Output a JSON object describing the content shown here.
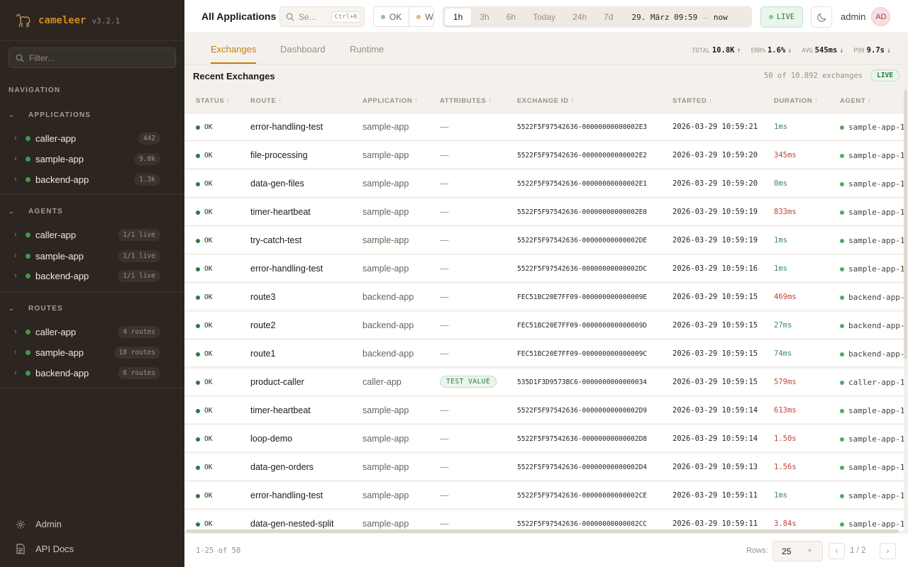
{
  "brand": {
    "name": "cameleer",
    "version": "v3.2.1"
  },
  "sidebar": {
    "filter_placeholder": "Filter...",
    "nav_label": "NAVIGATION",
    "sections": [
      {
        "title": "APPLICATIONS",
        "items": [
          {
            "label": "caller-app",
            "badge": "442"
          },
          {
            "label": "sample-app",
            "badge": "9.0k"
          },
          {
            "label": "backend-app",
            "badge": "1.3k"
          }
        ]
      },
      {
        "title": "AGENTS",
        "items": [
          {
            "label": "caller-app",
            "badge": "1/1 live"
          },
          {
            "label": "sample-app",
            "badge": "1/1 live"
          },
          {
            "label": "backend-app",
            "badge": "1/1 live"
          }
        ]
      },
      {
        "title": "ROUTES",
        "items": [
          {
            "label": "caller-app",
            "badge": "4 routes"
          },
          {
            "label": "sample-app",
            "badge": "18 routes"
          },
          {
            "label": "backend-app",
            "badge": "6 routes"
          }
        ]
      }
    ],
    "footer": [
      {
        "label": "Admin",
        "icon": "gear-icon"
      },
      {
        "label": "API Docs",
        "icon": "document-icon"
      }
    ]
  },
  "topbar": {
    "title": "All Applications",
    "search_placeholder": "Se...",
    "search_shortcut": "Ctrl+K",
    "status_filters": [
      "OK",
      "Wa"
    ],
    "time_presets": [
      "1h",
      "3h",
      "6h",
      "Today",
      "24h",
      "7d"
    ],
    "active_preset": "1h",
    "range_start": "29. März 09:59",
    "range_sep": "—",
    "range_end": "now",
    "live_label": "LIVE",
    "user": "admin",
    "avatar": "AD"
  },
  "tabs": [
    "Exchanges",
    "Dashboard",
    "Runtime"
  ],
  "active_tab": "Exchanges",
  "kpis": [
    {
      "label": "TOTAL",
      "value": "10.8K",
      "trend": "↑"
    },
    {
      "label": "ERR%",
      "value": "1.6%",
      "trend": "↓"
    },
    {
      "label": "AVG",
      "value": "545ms",
      "trend": "↓"
    },
    {
      "label": "P99",
      "value": "9.7s",
      "trend": "↓"
    }
  ],
  "section": {
    "title": "Recent Exchanges",
    "count": "50 of 10.892 exchanges",
    "live": "LIVE"
  },
  "table": {
    "columns": [
      "STATUS",
      "ROUTE",
      "APPLICATION",
      "ATTRIBUTES",
      "EXCHANGE ID",
      "STARTED",
      "DURATION",
      "AGENT"
    ],
    "rows": [
      {
        "status": "OK",
        "route": "error-handling-test",
        "app": "sample-app",
        "attr": "—",
        "id": "5522F5F97542636-00000000000002E3",
        "started": "2026-03-29 10:59:21",
        "duration": "1ms",
        "agent": "sample-app-1"
      },
      {
        "status": "OK",
        "route": "file-processing",
        "app": "sample-app",
        "attr": "—",
        "id": "5522F5F97542636-00000000000002E2",
        "started": "2026-03-29 10:59:20",
        "duration": "345ms",
        "agent": "sample-app-1"
      },
      {
        "status": "OK",
        "route": "data-gen-files",
        "app": "sample-app",
        "attr": "—",
        "id": "5522F5F97542636-00000000000002E1",
        "started": "2026-03-29 10:59:20",
        "duration": "0ms",
        "agent": "sample-app-1"
      },
      {
        "status": "OK",
        "route": "timer-heartbeat",
        "app": "sample-app",
        "attr": "—",
        "id": "5522F5F97542636-00000000000002E0",
        "started": "2026-03-29 10:59:19",
        "duration": "833ms",
        "agent": "sample-app-1"
      },
      {
        "status": "OK",
        "route": "try-catch-test",
        "app": "sample-app",
        "attr": "—",
        "id": "5522F5F97542636-00000000000002DE",
        "started": "2026-03-29 10:59:19",
        "duration": "1ms",
        "agent": "sample-app-1"
      },
      {
        "status": "OK",
        "route": "error-handling-test",
        "app": "sample-app",
        "attr": "—",
        "id": "5522F5F97542636-00000000000002DC",
        "started": "2026-03-29 10:59:16",
        "duration": "1ms",
        "agent": "sample-app-1"
      },
      {
        "status": "OK",
        "route": "route3",
        "app": "backend-app",
        "attr": "—",
        "id": "FEC51BC20E7FF09-000000000000009E",
        "started": "2026-03-29 10:59:15",
        "duration": "469ms",
        "agent": "backend-app-"
      },
      {
        "status": "OK",
        "route": "route2",
        "app": "backend-app",
        "attr": "—",
        "id": "FEC51BC20E7FF09-000000000000009D",
        "started": "2026-03-29 10:59:15",
        "duration": "27ms",
        "agent": "backend-app-"
      },
      {
        "status": "OK",
        "route": "route1",
        "app": "backend-app",
        "attr": "—",
        "id": "FEC51BC20E7FF09-000000000000009C",
        "started": "2026-03-29 10:59:15",
        "duration": "74ms",
        "agent": "backend-app-"
      },
      {
        "status": "OK",
        "route": "product-caller",
        "app": "caller-app",
        "attr": "TEST VALUE",
        "id": "535D1F3D9573BC6-0000000000000034",
        "started": "2026-03-29 10:59:15",
        "duration": "579ms",
        "agent": "caller-app-1"
      },
      {
        "status": "OK",
        "route": "timer-heartbeat",
        "app": "sample-app",
        "attr": "—",
        "id": "5522F5F97542636-00000000000002D9",
        "started": "2026-03-29 10:59:14",
        "duration": "613ms",
        "agent": "sample-app-1"
      },
      {
        "status": "OK",
        "route": "loop-demo",
        "app": "sample-app",
        "attr": "—",
        "id": "5522F5F97542636-00000000000002D8",
        "started": "2026-03-29 10:59:14",
        "duration": "1.50s",
        "agent": "sample-app-1"
      },
      {
        "status": "OK",
        "route": "data-gen-orders",
        "app": "sample-app",
        "attr": "—",
        "id": "5522F5F97542636-00000000000002D4",
        "started": "2026-03-29 10:59:13",
        "duration": "1.56s",
        "agent": "sample-app-1"
      },
      {
        "status": "OK",
        "route": "error-handling-test",
        "app": "sample-app",
        "attr": "—",
        "id": "5522F5F97542636-00000000000002CE",
        "started": "2026-03-29 10:59:11",
        "duration": "1ms",
        "agent": "sample-app-1"
      },
      {
        "status": "OK",
        "route": "data-gen-nested-split",
        "app": "sample-app",
        "attr": "—",
        "id": "5522F5F97542636-00000000000002CC",
        "started": "2026-03-29 10:59:11",
        "duration": "3.84s",
        "agent": "sample-app-1"
      }
    ]
  },
  "colors": {
    "accent": "#c47d12",
    "ok": "#2f7a3e",
    "fast": "#3a8a6a",
    "slow": "#c0443a",
    "sidebar": "#2c2520"
  },
  "footer": {
    "range": "1-25 of 50",
    "rows_label": "Rows:",
    "rows_value": "25",
    "page": "1 / 2",
    "prev": "‹",
    "next": "›"
  }
}
